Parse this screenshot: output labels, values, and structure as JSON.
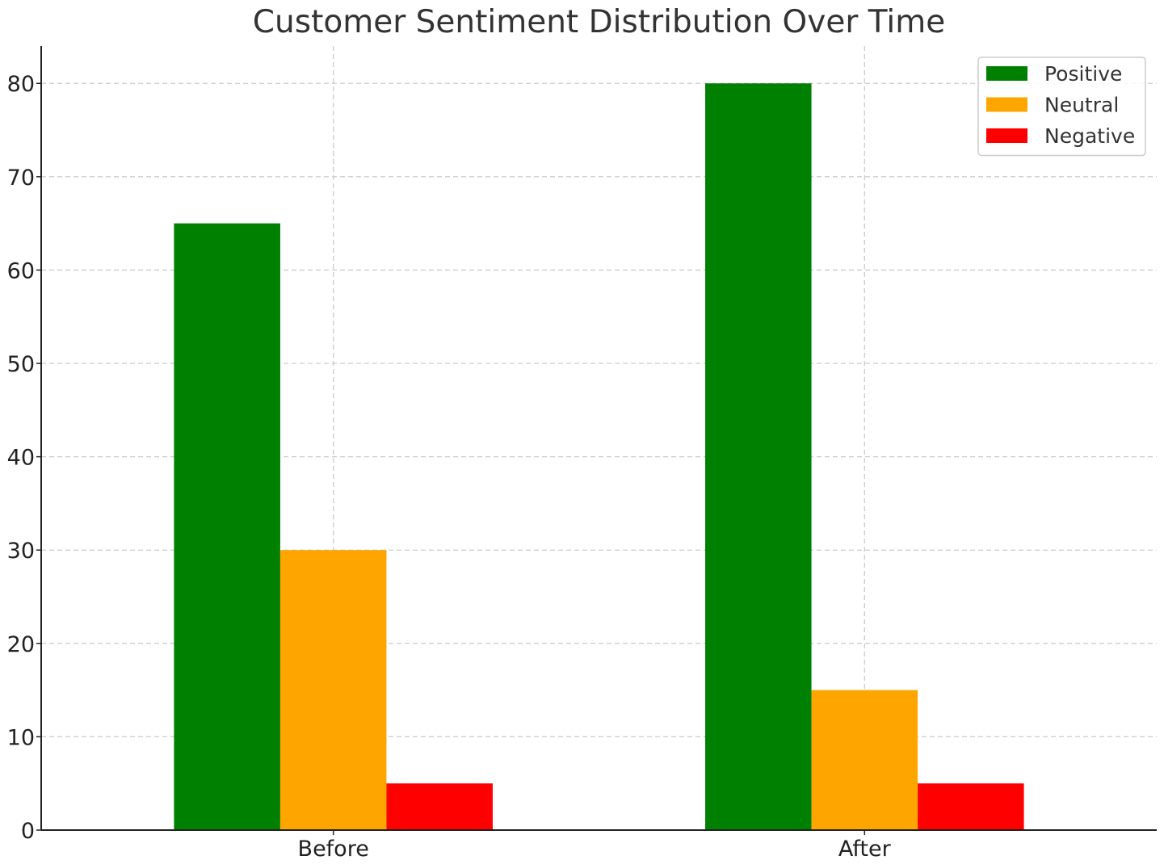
{
  "chart_data": {
    "type": "bar",
    "title": "Customer Sentiment Distribution Over Time",
    "xlabel": "",
    "ylabel": "",
    "categories": [
      "Before",
      "After"
    ],
    "series": [
      {
        "name": "Positive",
        "values": [
          65,
          80
        ],
        "color": "#008000"
      },
      {
        "name": "Neutral",
        "values": [
          30,
          15
        ],
        "color": "#FFA500"
      },
      {
        "name": "Negative",
        "values": [
          5,
          5
        ],
        "color": "#FF0000"
      }
    ],
    "ylim": [
      0,
      84
    ],
    "yticks": [
      0,
      10,
      20,
      30,
      40,
      50,
      60,
      70,
      80
    ],
    "grid": true,
    "legend_position": "top-right"
  }
}
